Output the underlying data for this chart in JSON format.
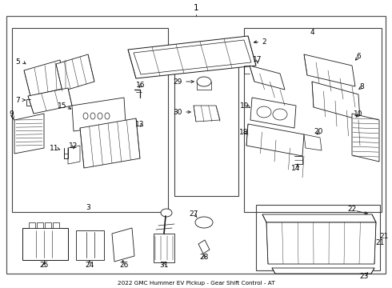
{
  "bg": "#ffffff",
  "lc": "#1a1a1a",
  "tc": "#000000",
  "figsize": [
    4.9,
    3.6
  ],
  "dpi": 100,
  "title": "2022 GMC Hummer EV Pickup - Gear Shift Control - AT"
}
